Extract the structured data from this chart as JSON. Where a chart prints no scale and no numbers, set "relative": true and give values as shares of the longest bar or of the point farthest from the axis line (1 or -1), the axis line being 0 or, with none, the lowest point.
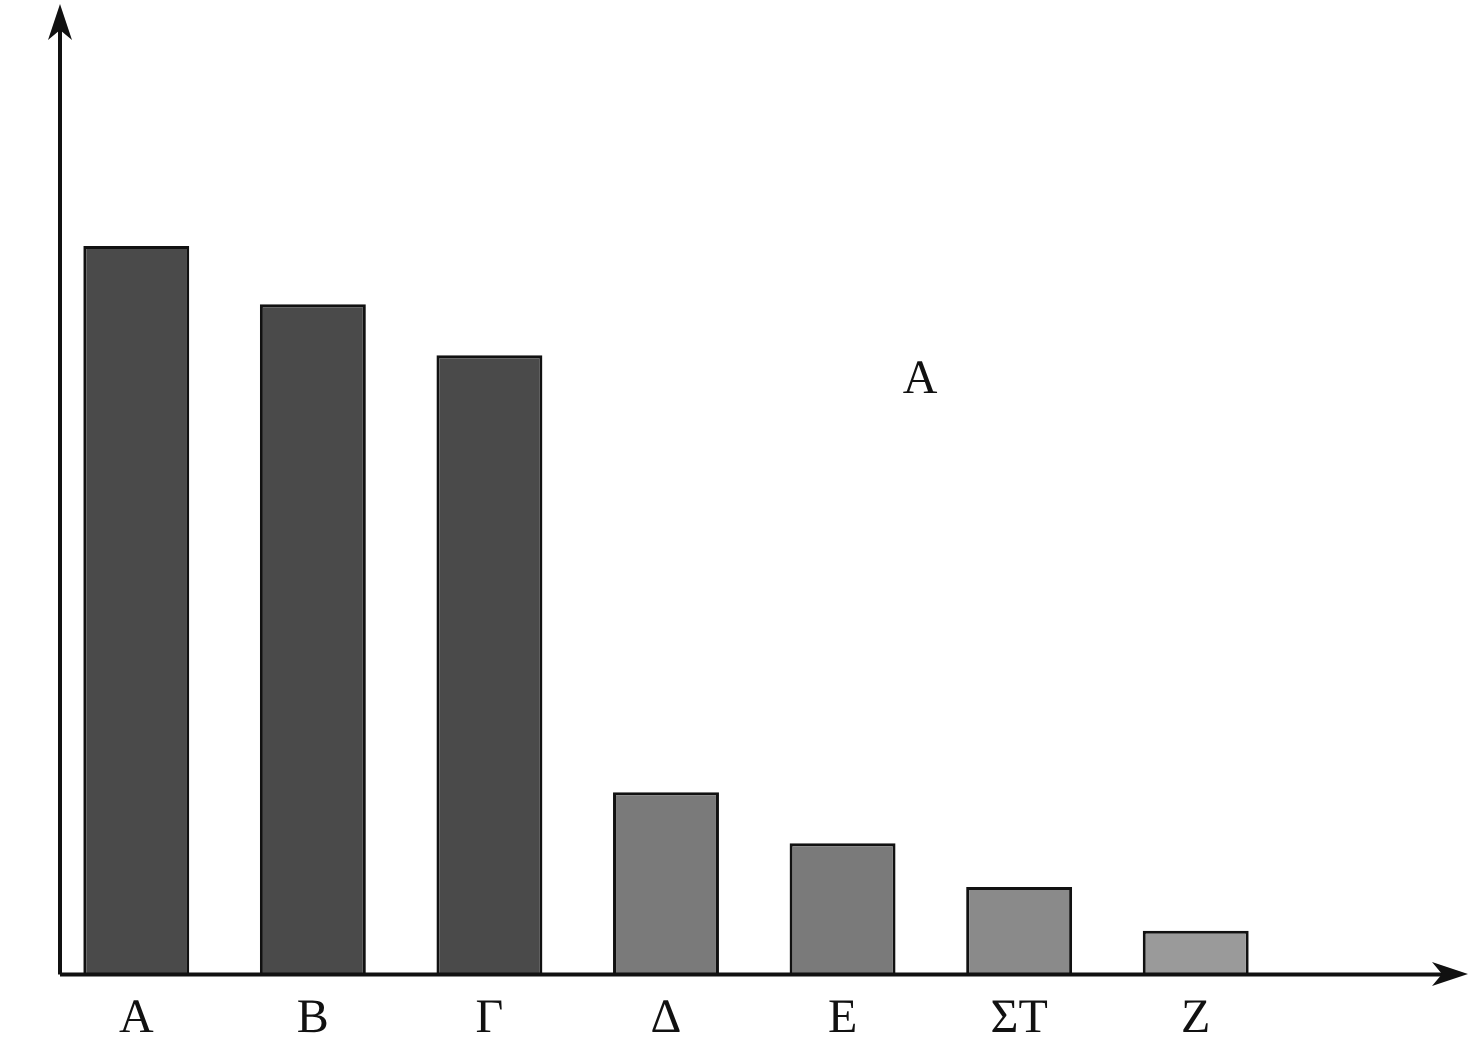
{
  "chart_data": {
    "type": "bar",
    "relative": true,
    "categories": [
      "A",
      "B",
      "Γ",
      "Δ",
      "E",
      "ΣT",
      "Z"
    ],
    "values": [
      1,
      0.92,
      0.85,
      0.25,
      0.18,
      0.12,
      0.06
    ],
    "colors": [
      "#4a4a4a",
      "#4a4a4a",
      "#4a4a4a",
      "#7a7a7a",
      "#7a7a7a",
      "#8a8a8a",
      "#9a9a9a"
    ],
    "annotations": [
      "A"
    ],
    "legend": false,
    "grid": false
  }
}
